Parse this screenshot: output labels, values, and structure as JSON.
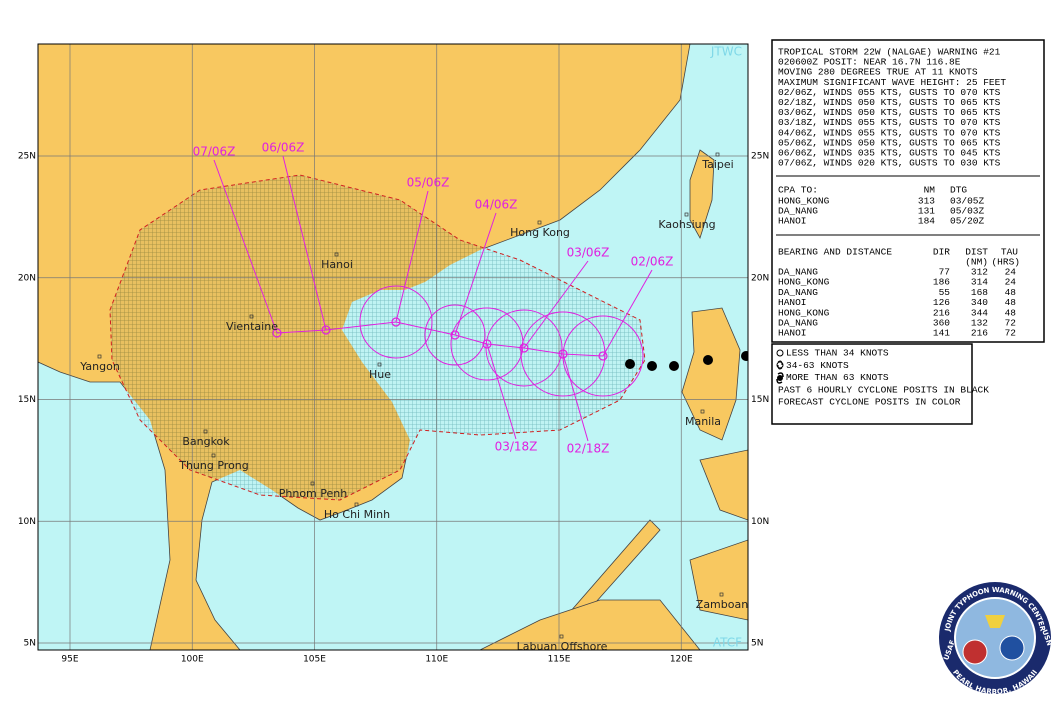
{
  "map": {
    "credit_top": "JTWC",
    "credit_bottom": "ATCF",
    "lon_ticks": [
      {
        "value": 95,
        "label": "95E"
      },
      {
        "value": 100,
        "label": "100E"
      },
      {
        "value": 105,
        "label": "105E"
      },
      {
        "value": 110,
        "label": "110E"
      },
      {
        "value": 115,
        "label": "115E"
      },
      {
        "value": 120,
        "label": "120E"
      }
    ],
    "lat_ticks": [
      {
        "value": 25,
        "label": "25N"
      },
      {
        "value": 20,
        "label": "20N"
      },
      {
        "value": 15,
        "label": "15N"
      },
      {
        "value": 10,
        "label": "10N"
      },
      {
        "value": 5,
        "label": "5N"
      }
    ],
    "places": [
      "Taipei",
      "Kaohsiung",
      "Hong Kong",
      "Hanoi",
      "Vientaine",
      "Yangon",
      "Hue",
      "Manila",
      "Bangkok",
      "Thung Prong",
      "Phnom Penh",
      "Ho Chi Minh",
      "Zamboan",
      "Labuan Offshore"
    ],
    "forecast_labels": [
      "02/06Z",
      "02/18Z",
      "03/06Z",
      "03/18Z",
      "04/06Z",
      "05/06Z",
      "06/06Z",
      "07/06Z"
    ]
  },
  "warning": {
    "lines": [
      "TROPICAL STORM 22W (NALGAE) WARNING #21",
      "020600Z POSIT: NEAR 16.7N 116.8E",
      "MOVING 280 DEGREES TRUE AT 11 KNOTS",
      "MAXIMUM SIGNIFICANT WAVE HEIGHT: 25 FEET",
      "02/06Z, WINDS 055 KTS, GUSTS TO 070 KTS",
      "02/18Z, WINDS 050 KTS, GUSTS TO 065 KTS",
      "03/06Z, WINDS 050 KTS, GUSTS TO 065 KTS",
      "03/18Z, WINDS 055 KTS, GUSTS TO 070 KTS",
      "04/06Z, WINDS 055 KTS, GUSTS TO 070 KTS",
      "05/06Z, WINDS 050 KTS, GUSTS TO 065 KTS",
      "06/06Z, WINDS 035 KTS, GUSTS TO 045 KTS",
      "07/06Z, WINDS 020 KTS, GUSTS TO 030 KTS"
    ]
  },
  "cpa": {
    "header": [
      "CPA TO:",
      "NM",
      "DTG"
    ],
    "rows": [
      [
        "HONG_KONG",
        313,
        "03/05Z"
      ],
      [
        "DA_NANG",
        131,
        "05/03Z"
      ],
      [
        "HANOI",
        184,
        "05/20Z"
      ]
    ]
  },
  "bearing": {
    "header": [
      "BEARING AND DISTANCE",
      "DIR",
      "DIST",
      "TAU"
    ],
    "units": [
      "(NM)",
      "(HRS)"
    ],
    "rows": [
      [
        "DA_NANG",
        77,
        312,
        24
      ],
      [
        "HONG_KONG",
        186,
        314,
        24
      ],
      [
        "DA_NANG",
        55,
        168,
        48
      ],
      [
        "HANOI",
        126,
        340,
        48
      ],
      [
        "HONG_KONG",
        216,
        344,
        48
      ],
      [
        "DA_NANG",
        360,
        132,
        72
      ],
      [
        "HANOI",
        141,
        216,
        72
      ]
    ]
  },
  "legend": {
    "lines": [
      "LESS THAN 34 KNOTS",
      "34-63 KNOTS",
      "MORE THAN 63 KNOTS",
      "PAST 6 HOURLY CYCLONE POSITS IN BLACK",
      "FORECAST CYCLONE POSITS IN COLOR"
    ]
  },
  "logo": {
    "top": "JOINT TYPHOON WARNING CENTER",
    "left": "USAF",
    "right": "USN",
    "bottom": "PEARL HARBOR, HAWAII"
  }
}
